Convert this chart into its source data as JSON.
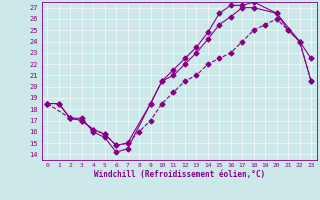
{
  "xlabel": "Windchill (Refroidissement éolien,°C)",
  "bg_color": "#cce8e8",
  "line_color": "#880088",
  "xmin": 0,
  "xmax": 23,
  "ymin": 14,
  "ymax": 27,
  "yticks": [
    14,
    15,
    16,
    17,
    18,
    19,
    20,
    21,
    22,
    23,
    24,
    25,
    26,
    27
  ],
  "xticks": [
    0,
    1,
    2,
    3,
    4,
    5,
    6,
    7,
    8,
    9,
    10,
    11,
    12,
    13,
    14,
    15,
    16,
    17,
    18,
    19,
    20,
    21,
    22,
    23
  ],
  "line1_x": [
    0,
    1,
    2,
    3,
    4,
    5,
    6,
    7,
    9,
    10,
    11,
    12,
    13,
    14,
    15,
    16,
    17,
    18,
    20,
    22,
    23
  ],
  "line1_y": [
    18.5,
    18.5,
    17.2,
    17.2,
    16.0,
    15.5,
    14.2,
    14.5,
    18.5,
    20.5,
    21.5,
    22.5,
    23.5,
    24.8,
    26.5,
    27.2,
    27.2,
    27.5,
    26.5,
    24.0,
    20.5
  ],
  "line2_x": [
    0,
    1,
    2,
    3,
    4,
    5,
    6,
    7,
    9,
    10,
    11,
    12,
    13,
    14,
    15,
    16,
    17,
    18,
    20,
    21,
    22,
    23
  ],
  "line2_y": [
    18.5,
    18.5,
    17.2,
    17.0,
    16.2,
    15.8,
    14.8,
    15.0,
    18.5,
    20.5,
    21.0,
    22.0,
    23.0,
    24.2,
    25.5,
    26.2,
    27.0,
    27.0,
    26.5,
    25.0,
    24.0,
    22.5
  ],
  "line3_x": [
    0,
    2,
    3,
    4,
    5,
    6,
    7,
    8,
    9,
    10,
    11,
    12,
    13,
    14,
    15,
    16,
    17,
    18,
    19,
    20,
    21,
    22,
    23
  ],
  "line3_y": [
    18.5,
    17.2,
    17.0,
    16.2,
    15.8,
    14.8,
    15.0,
    16.0,
    17.0,
    18.5,
    19.5,
    20.5,
    21.0,
    22.0,
    22.5,
    23.0,
    24.0,
    25.0,
    25.5,
    26.0,
    25.0,
    24.0,
    20.5
  ]
}
